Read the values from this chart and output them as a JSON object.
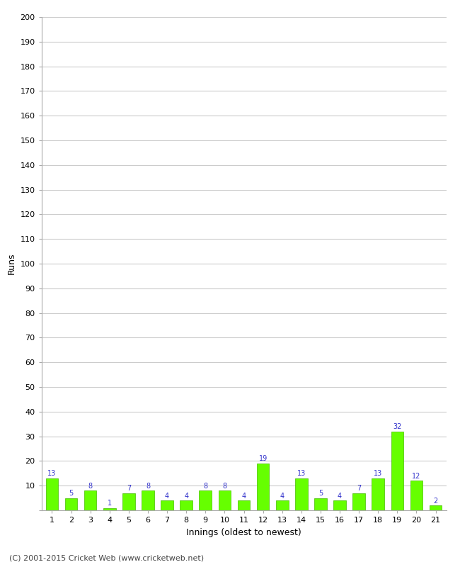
{
  "title": "",
  "xlabel": "Innings (oldest to newest)",
  "ylabel": "Runs",
  "categories": [
    1,
    2,
    3,
    4,
    5,
    6,
    7,
    8,
    9,
    10,
    11,
    12,
    13,
    14,
    15,
    16,
    17,
    18,
    19,
    20,
    21
  ],
  "values": [
    13,
    5,
    8,
    1,
    7,
    8,
    4,
    4,
    8,
    8,
    4,
    19,
    4,
    13,
    5,
    4,
    7,
    13,
    32,
    12,
    2
  ],
  "bar_color": "#66ff00",
  "bar_edge_color": "#44bb00",
  "label_color": "#3333cc",
  "ylim": [
    0,
    200
  ],
  "yticks": [
    0,
    10,
    20,
    30,
    40,
    50,
    60,
    70,
    80,
    90,
    100,
    110,
    120,
    130,
    140,
    150,
    160,
    170,
    180,
    190,
    200
  ],
  "background_color": "#ffffff",
  "grid_color": "#cccccc",
  "footer": "(C) 2001-2015 Cricket Web (www.cricketweb.net)",
  "label_fontsize": 7,
  "axis_tick_fontsize": 8,
  "axis_label_fontsize": 9,
  "footer_fontsize": 8
}
